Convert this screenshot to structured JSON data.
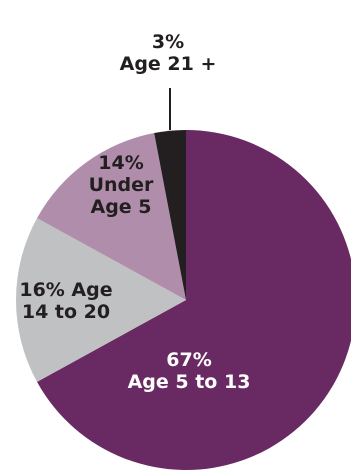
{
  "chart_data": {
    "type": "pie",
    "slices": [
      {
        "label_lines": [
          "67%",
          "Age 5 to 13"
        ],
        "value": 67,
        "color": "#692a63",
        "text_color": "#ffffff"
      },
      {
        "label_lines": [
          "16% Age",
          "14 to 20"
        ],
        "value": 16,
        "color": "#c0c1c3",
        "text_color": "#231f20"
      },
      {
        "label_lines": [
          "14%",
          "Under",
          "Age 5"
        ],
        "value": 14,
        "color": "#b08eab",
        "text_color": "#231f20"
      },
      {
        "label_lines": [
          "3%",
          "Age 21 +"
        ],
        "value": 3,
        "color": "#231f20",
        "text_color": "#231f20"
      }
    ],
    "start": "12 o'clock, clockwise",
    "legend": "none",
    "callout_leader": "3% slice"
  }
}
